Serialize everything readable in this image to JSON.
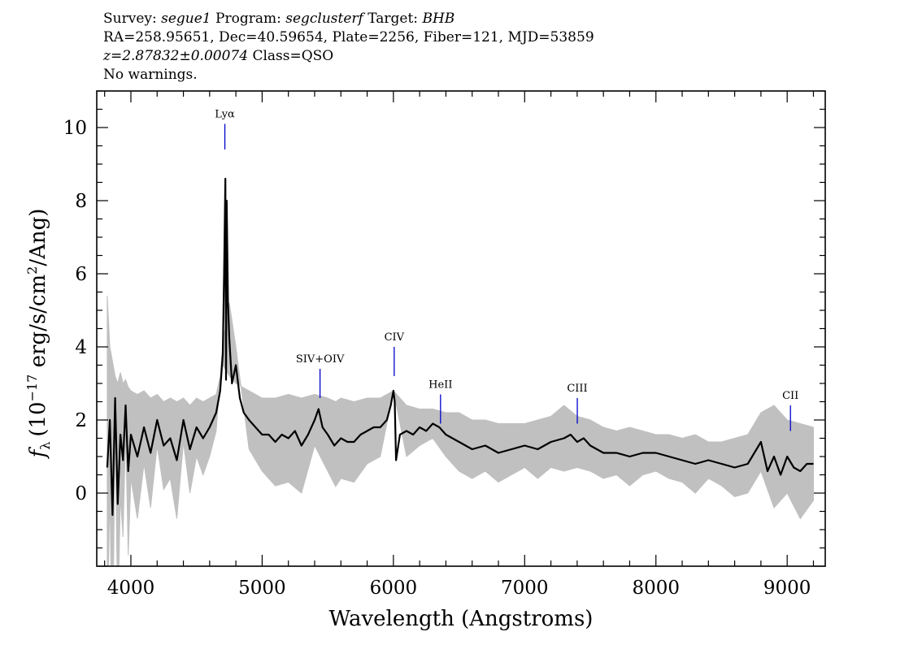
{
  "header": {
    "survey_label": "Survey:",
    "survey": "segue1",
    "program_label": "Program:",
    "program": "segclusterf",
    "target_label": "Target:",
    "target": "BHB",
    "line2": "RA=258.95651, Dec=40.59654, Plate=2256, Fiber=121, MJD=53859",
    "redshift": "z=2.87832±0.00074",
    "class": "Class=QSO",
    "warnings": "No warnings."
  },
  "chart_data": {
    "type": "line",
    "xlabel": "Wavelength (Angstroms)",
    "ylabel": "(10^-17 erg/s/cm^2/Ang)",
    "ylabel_parts": {
      "symbol": "f",
      "symbol_sub": "λ",
      "pre": "(10",
      "exp": "−17",
      "mid": " erg/s/cm",
      "exp2": "2",
      "post": "/Ang)"
    },
    "xlim": [
      3740,
      9290
    ],
    "ylim": [
      -2.0,
      11.0
    ],
    "xticks": [
      4000,
      5000,
      6000,
      7000,
      8000,
      9000
    ],
    "yticks": [
      0,
      2,
      4,
      6,
      8,
      10
    ],
    "colors": {
      "flux": "#000000",
      "error": "#c0c0c0",
      "lines": "#0000cc"
    },
    "series": [
      {
        "role": "flux",
        "x": [
          3820,
          3840,
          3860,
          3880,
          3900,
          3920,
          3940,
          3960,
          3980,
          4000,
          4050,
          4100,
          4150,
          4200,
          4250,
          4300,
          4350,
          4400,
          4450,
          4500,
          4550,
          4600,
          4650,
          4680,
          4700,
          4710,
          4720,
          4725,
          4730,
          4740,
          4750,
          4770,
          4800,
          4830,
          4860,
          4900,
          4950,
          5000,
          5050,
          5100,
          5150,
          5200,
          5250,
          5300,
          5350,
          5400,
          5430,
          5460,
          5500,
          5550,
          5600,
          5650,
          5700,
          5750,
          5800,
          5850,
          5900,
          5950,
          5980,
          6000,
          6010,
          6020,
          6050,
          6100,
          6150,
          6200,
          6250,
          6300,
          6350,
          6400,
          6450,
          6500,
          6600,
          6700,
          6800,
          6900,
          7000,
          7100,
          7200,
          7300,
          7350,
          7400,
          7450,
          7500,
          7550,
          7600,
          7700,
          7800,
          7900,
          8000,
          8100,
          8200,
          8300,
          8400,
          8500,
          8600,
          8700,
          8800,
          8850,
          8900,
          8950,
          9000,
          9050,
          9100,
          9150,
          9200
        ],
        "y": [
          0.7,
          2.0,
          -0.6,
          2.6,
          -0.3,
          1.6,
          0.9,
          2.4,
          0.6,
          1.6,
          1.0,
          1.8,
          1.1,
          2.0,
          1.3,
          1.5,
          0.9,
          2.0,
          1.2,
          1.8,
          1.5,
          1.8,
          2.2,
          2.8,
          3.8,
          6.0,
          8.6,
          3.1,
          8.0,
          5.2,
          4.2,
          3.0,
          3.5,
          2.6,
          2.2,
          2.0,
          1.8,
          1.6,
          1.6,
          1.4,
          1.6,
          1.5,
          1.7,
          1.3,
          1.6,
          2.0,
          2.3,
          1.8,
          1.6,
          1.3,
          1.5,
          1.4,
          1.4,
          1.6,
          1.7,
          1.8,
          1.8,
          2.0,
          2.4,
          2.8,
          2.5,
          0.9,
          1.6,
          1.7,
          1.6,
          1.8,
          1.7,
          1.9,
          1.8,
          1.6,
          1.5,
          1.4,
          1.2,
          1.3,
          1.1,
          1.2,
          1.3,
          1.2,
          1.4,
          1.5,
          1.6,
          1.4,
          1.5,
          1.3,
          1.2,
          1.1,
          1.1,
          1.0,
          1.1,
          1.1,
          1.0,
          0.9,
          0.8,
          0.9,
          0.8,
          0.7,
          0.8,
          1.4,
          0.6,
          1.0,
          0.5,
          1.0,
          0.7,
          0.6,
          0.8,
          0.8
        ]
      },
      {
        "role": "error",
        "x": [
          3820,
          3840,
          3860,
          3880,
          3900,
          3920,
          3940,
          3960,
          3980,
          4000,
          4050,
          4100,
          4150,
          4200,
          4250,
          4300,
          4350,
          4400,
          4450,
          4500,
          4550,
          4600,
          4650,
          4700,
          4750,
          4800,
          4900,
          5000,
          5100,
          5200,
          5300,
          5400,
          5500,
          5560,
          5600,
          5700,
          5800,
          5900,
          6000,
          6100,
          6200,
          6300,
          6400,
          6500,
          6600,
          6700,
          6800,
          6900,
          7000,
          7100,
          7200,
          7300,
          7400,
          7500,
          7600,
          7700,
          7800,
          7900,
          8000,
          8100,
          8200,
          8300,
          8400,
          8500,
          8600,
          8700,
          8800,
          8900,
          9000,
          9100,
          9200
        ],
        "y": [
          5.4,
          4.0,
          3.6,
          3.2,
          3.0,
          3.3,
          3.0,
          3.1,
          2.9,
          2.8,
          2.7,
          2.8,
          2.6,
          2.7,
          2.5,
          2.6,
          2.5,
          2.6,
          2.4,
          2.6,
          2.5,
          2.6,
          2.7,
          3.5,
          3.2,
          3.0,
          2.8,
          2.6,
          2.6,
          2.7,
          2.6,
          2.7,
          2.6,
          2.5,
          2.6,
          2.5,
          2.6,
          2.6,
          2.8,
          2.4,
          2.3,
          2.3,
          2.2,
          2.2,
          2.0,
          2.0,
          1.9,
          1.9,
          1.9,
          2.0,
          2.1,
          2.4,
          2.1,
          2.0,
          1.8,
          1.7,
          1.8,
          1.7,
          1.6,
          1.6,
          1.5,
          1.6,
          1.4,
          1.4,
          1.5,
          1.6,
          2.2,
          2.4,
          2.0,
          1.9,
          1.8
        ]
      }
    ],
    "lines": [
      {
        "label": "Lyα",
        "x": 4716,
        "y0": 9.4,
        "y1": 10.1
      },
      {
        "label": "SIV+OIV",
        "x": 5441,
        "y0": 2.6,
        "y1": 3.4
      },
      {
        "label": "CIV",
        "x": 6006,
        "y0": 3.2,
        "y1": 4.0
      },
      {
        "label": "HeII",
        "x": 6359,
        "y0": 1.9,
        "y1": 2.7
      },
      {
        "label": "CIII",
        "x": 7401,
        "y0": 1.9,
        "y1": 2.6
      },
      {
        "label": "CII",
        "x": 9025,
        "y0": 1.7,
        "y1": 2.4
      }
    ]
  }
}
